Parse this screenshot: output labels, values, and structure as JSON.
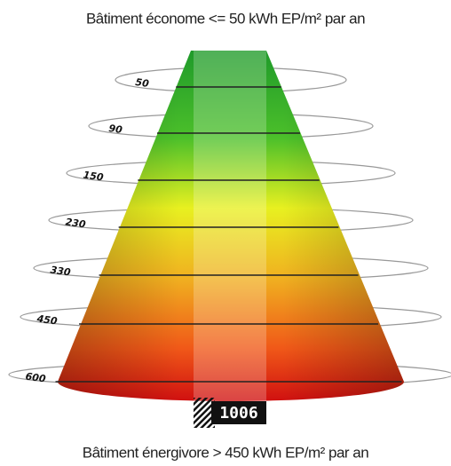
{
  "header": {
    "title": "Bâtiment économe  <= 50 kWh EP/m² par an"
  },
  "levels": [
    50,
    90,
    150,
    230,
    330,
    450,
    600
  ],
  "indicator": {
    "value": 1006
  },
  "footer": {
    "title": "Bâtiment énergivore > 450 kWh EP/m² par an"
  }
}
